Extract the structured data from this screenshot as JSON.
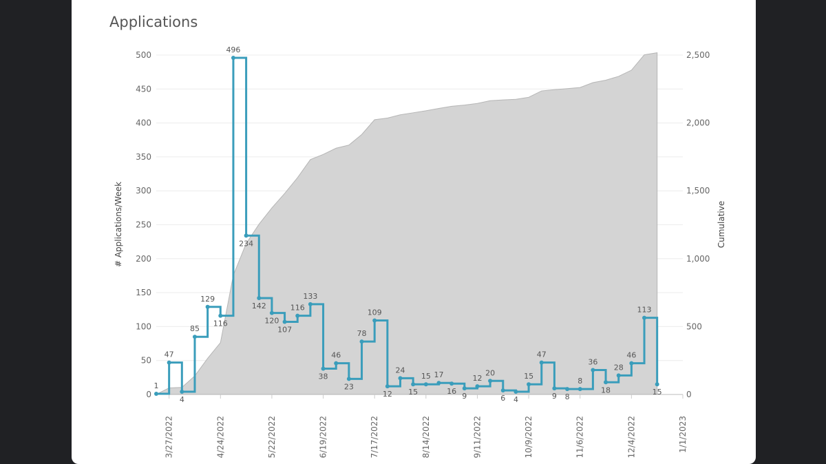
{
  "chart_data": {
    "type": "line",
    "title": "Applications",
    "ylabel": "# Applications/Week",
    "y2label": "Cumulative",
    "ylim": [
      0,
      500
    ],
    "y2lim": [
      0,
      2500
    ],
    "y_ticks": [
      "0",
      "50",
      "100",
      "150",
      "200",
      "250",
      "300",
      "350",
      "400",
      "450",
      "500"
    ],
    "y2_ticks": [
      "0",
      "500",
      "1,000",
      "1,500",
      "2,000",
      "2,500"
    ],
    "x_ticks": [
      {
        "date": "2022-03-27",
        "label": "3/27/2022"
      },
      {
        "date": "2022-04-24",
        "label": "4/24/2022"
      },
      {
        "date": "2022-05-22",
        "label": "5/22/2022"
      },
      {
        "date": "2022-06-19",
        "label": "6/19/2022"
      },
      {
        "date": "2022-07-17",
        "label": "7/17/2022"
      },
      {
        "date": "2022-08-14",
        "label": "8/14/2022"
      },
      {
        "date": "2022-09-11",
        "label": "9/11/2022"
      },
      {
        "date": "2022-10-09",
        "label": "10/9/2022"
      },
      {
        "date": "2022-11-06",
        "label": "11/6/2022"
      },
      {
        "date": "2022-12-04",
        "label": "12/4/2022"
      },
      {
        "date": "2023-01-01",
        "label": "1/1/2023"
      }
    ],
    "x_range": [
      "2022-03-20",
      "2023-01-01"
    ],
    "step_series": {
      "color": "#3a9dbb",
      "points": [
        {
          "date": "2022-03-20",
          "value": 1
        },
        {
          "date": "2022-03-27",
          "value": 47
        },
        {
          "date": "2022-04-03",
          "value": 4
        },
        {
          "date": "2022-04-10",
          "value": 85
        },
        {
          "date": "2022-04-17",
          "value": 129
        },
        {
          "date": "2022-04-24",
          "value": 116
        },
        {
          "date": "2022-05-01",
          "value": 496
        },
        {
          "date": "2022-05-08",
          "value": 234
        },
        {
          "date": "2022-05-15",
          "value": 142
        },
        {
          "date": "2022-05-22",
          "value": 120
        },
        {
          "date": "2022-05-29",
          "value": 107
        },
        {
          "date": "2022-06-05",
          "value": 116
        },
        {
          "date": "2022-06-12",
          "value": 133
        },
        {
          "date": "2022-06-19",
          "value": 38
        },
        {
          "date": "2022-06-26",
          "value": 46
        },
        {
          "date": "2022-07-03",
          "value": 23
        },
        {
          "date": "2022-07-10",
          "value": 78
        },
        {
          "date": "2022-07-17",
          "value": 109
        },
        {
          "date": "2022-07-24",
          "value": 12
        },
        {
          "date": "2022-07-31",
          "value": 24
        },
        {
          "date": "2022-08-07",
          "value": 15
        },
        {
          "date": "2022-08-14",
          "value": 15
        },
        {
          "date": "2022-08-21",
          "value": 17
        },
        {
          "date": "2022-08-28",
          "value": 16
        },
        {
          "date": "2022-09-04",
          "value": 9
        },
        {
          "date": "2022-09-11",
          "value": 12
        },
        {
          "date": "2022-09-18",
          "value": 20
        },
        {
          "date": "2022-09-25",
          "value": 6
        },
        {
          "date": "2022-10-02",
          "value": 4
        },
        {
          "date": "2022-10-09",
          "value": 15
        },
        {
          "date": "2022-10-16",
          "value": 47
        },
        {
          "date": "2022-10-23",
          "value": 9
        },
        {
          "date": "2022-10-30",
          "value": 8
        },
        {
          "date": "2022-11-06",
          "value": 8
        },
        {
          "date": "2022-11-13",
          "value": 36
        },
        {
          "date": "2022-11-20",
          "value": 18
        },
        {
          "date": "2022-11-27",
          "value": 28
        },
        {
          "date": "2022-12-04",
          "value": 46
        },
        {
          "date": "2022-12-11",
          "value": 113
        },
        {
          "date": "2022-12-18",
          "value": 15
        }
      ]
    },
    "area_series": {
      "color": "#d4d4d4",
      "axis": "right"
    },
    "grid": true
  }
}
